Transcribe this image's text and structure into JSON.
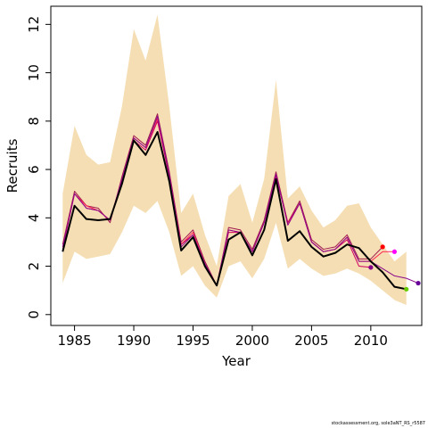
{
  "chart_data": {
    "type": "line",
    "xlabel": "Year",
    "ylabel": "Recruits",
    "xlim": [
      1983.0,
      2014.3
    ],
    "ylim": [
      -0.45,
      12.75
    ],
    "xticks": [
      1985,
      1990,
      1995,
      2000,
      2005,
      2010
    ],
    "yticks": [
      0,
      2,
      4,
      6,
      8,
      10,
      12
    ],
    "grid": false,
    "legend": "none",
    "band": {
      "color": "#f5deb3",
      "x": [
        1984,
        1985,
        1986,
        1987,
        1988,
        1989,
        1990,
        1991,
        1992,
        1993,
        1994,
        1995,
        1996,
        1997,
        1998,
        1999,
        2000,
        2001,
        2002,
        2003,
        2004,
        2005,
        2006,
        2007,
        2008,
        2009,
        2010,
        2011,
        2012,
        2013
      ],
      "upper": [
        5.0,
        7.8,
        6.6,
        6.2,
        6.3,
        8.6,
        11.8,
        10.5,
        12.4,
        8.6,
        4.2,
        5.0,
        3.3,
        2.0,
        4.9,
        5.4,
        3.8,
        5.6,
        9.7,
        4.8,
        5.3,
        4.3,
        3.6,
        3.9,
        4.5,
        4.6,
        3.6,
        2.9,
        2.2,
        2.6
      ],
      "lower": [
        1.3,
        2.6,
        2.3,
        2.4,
        2.5,
        3.4,
        4.5,
        4.2,
        4.7,
        3.4,
        1.6,
        2.0,
        1.2,
        0.7,
        2.0,
        2.2,
        1.5,
        2.3,
        3.8,
        1.9,
        2.3,
        1.9,
        1.6,
        1.7,
        1.9,
        1.7,
        1.4,
        1.0,
        0.6,
        0.4
      ]
    },
    "series": [
      {
        "color": "#a01a4f",
        "width": 1,
        "x": [
          1984,
          1985,
          1986,
          1987,
          1988,
          1989,
          1990,
          1991,
          1992,
          1993,
          1994,
          1995,
          1996,
          1997,
          1998,
          1999,
          2000,
          2001,
          2002,
          2003,
          2004,
          2005,
          2006,
          2007,
          2008,
          2009,
          2010,
          2011
        ],
        "values": [
          2.9,
          5.1,
          4.5,
          4.4,
          3.8,
          5.7,
          7.4,
          7.0,
          8.3,
          5.9,
          3.0,
          3.5,
          2.2,
          1.2,
          3.6,
          3.5,
          2.7,
          3.9,
          5.9,
          3.8,
          4.7,
          3.1,
          2.7,
          2.8,
          3.3,
          2.3,
          2.3,
          2.8
        ],
        "end_marker": {
          "x": 2011,
          "y": 2.8,
          "color": "#ff0000"
        }
      },
      {
        "color": "#ff2050",
        "width": 1,
        "x": [
          1984,
          1985,
          1986,
          1987,
          1988,
          1989,
          1990,
          1991,
          1992,
          1993,
          1994,
          1995,
          1996,
          1997,
          1998,
          1999,
          2000,
          2001,
          2002,
          2003,
          2004,
          2005,
          2006,
          2007,
          2008,
          2009,
          2010,
          2011,
          2012
        ],
        "values": [
          2.8,
          5.0,
          4.5,
          4.3,
          3.9,
          5.6,
          7.3,
          6.9,
          8.1,
          5.8,
          2.9,
          3.4,
          2.1,
          1.2,
          3.5,
          3.4,
          2.6,
          3.8,
          5.8,
          3.7,
          4.6,
          3.0,
          2.6,
          2.7,
          3.2,
          2.2,
          2.2,
          2.6,
          2.6
        ],
        "end_marker": {
          "x": 2012,
          "y": 2.6,
          "color": "#ff00ff"
        }
      },
      {
        "color": "#d00060",
        "width": 1,
        "x": [
          1984,
          1985,
          1986,
          1987,
          1988,
          1989,
          1990,
          1991,
          1992,
          1993,
          1994,
          1995,
          1996,
          1997,
          1998,
          1999,
          2000,
          2001,
          2002,
          2003,
          2004,
          2005,
          2006,
          2007,
          2008,
          2009,
          2010
        ],
        "values": [
          2.7,
          5.0,
          4.4,
          4.3,
          3.9,
          5.5,
          7.2,
          6.8,
          8.0,
          5.7,
          2.9,
          3.3,
          2.1,
          1.2,
          3.4,
          3.4,
          2.6,
          3.8,
          5.7,
          3.8,
          4.6,
          3.0,
          2.6,
          2.7,
          3.1,
          2.0,
          1.95
        ],
        "end_marker": {
          "x": 2010,
          "y": 1.95,
          "color": "#880088"
        }
      },
      {
        "color": "#8b0a8b",
        "width": 1,
        "x": [
          1984,
          1985,
          1986,
          1987,
          1988,
          1989,
          1990,
          1991,
          1992,
          1993,
          1994,
          1995,
          1996,
          1997,
          1998,
          1999,
          2000,
          2001,
          2002,
          2003,
          2004,
          2005,
          2006,
          2007,
          2008,
          2009,
          2010,
          2011,
          2012,
          2013,
          2014
        ],
        "values": [
          2.8,
          5.0,
          4.4,
          4.3,
          3.9,
          5.6,
          7.3,
          6.9,
          8.2,
          5.8,
          2.8,
          3.3,
          2.1,
          1.2,
          3.5,
          3.4,
          2.6,
          3.8,
          5.8,
          3.7,
          4.6,
          3.0,
          2.6,
          2.7,
          3.2,
          2.2,
          2.2,
          1.9,
          1.6,
          1.5,
          1.3
        ],
        "end_marker": {
          "x": 2014,
          "y": 1.3,
          "color": "#660099"
        }
      },
      {
        "color": "#000000",
        "width": 2,
        "x": [
          1984,
          1985,
          1986,
          1987,
          1988,
          1989,
          1990,
          1991,
          1992,
          1993,
          1994,
          1995,
          1996,
          1997,
          1998,
          1999,
          2000,
          2001,
          2002,
          2003,
          2004,
          2005,
          2006,
          2007,
          2008,
          2009,
          2010,
          2011,
          2012,
          2013
        ],
        "values": [
          2.6,
          4.5,
          3.95,
          3.9,
          3.95,
          5.4,
          7.2,
          6.6,
          7.55,
          5.5,
          2.65,
          3.2,
          2.0,
          1.2,
          3.1,
          3.4,
          2.45,
          3.5,
          5.6,
          3.05,
          3.45,
          2.8,
          2.4,
          2.55,
          2.9,
          2.75,
          2.2,
          1.75,
          1.15,
          1.05
        ],
        "end_marker": {
          "x": 2013,
          "y": 1.05,
          "color": "#66cc00"
        }
      }
    ]
  },
  "footer": "stockassessment.org, sole3aNT_RS_r5587"
}
